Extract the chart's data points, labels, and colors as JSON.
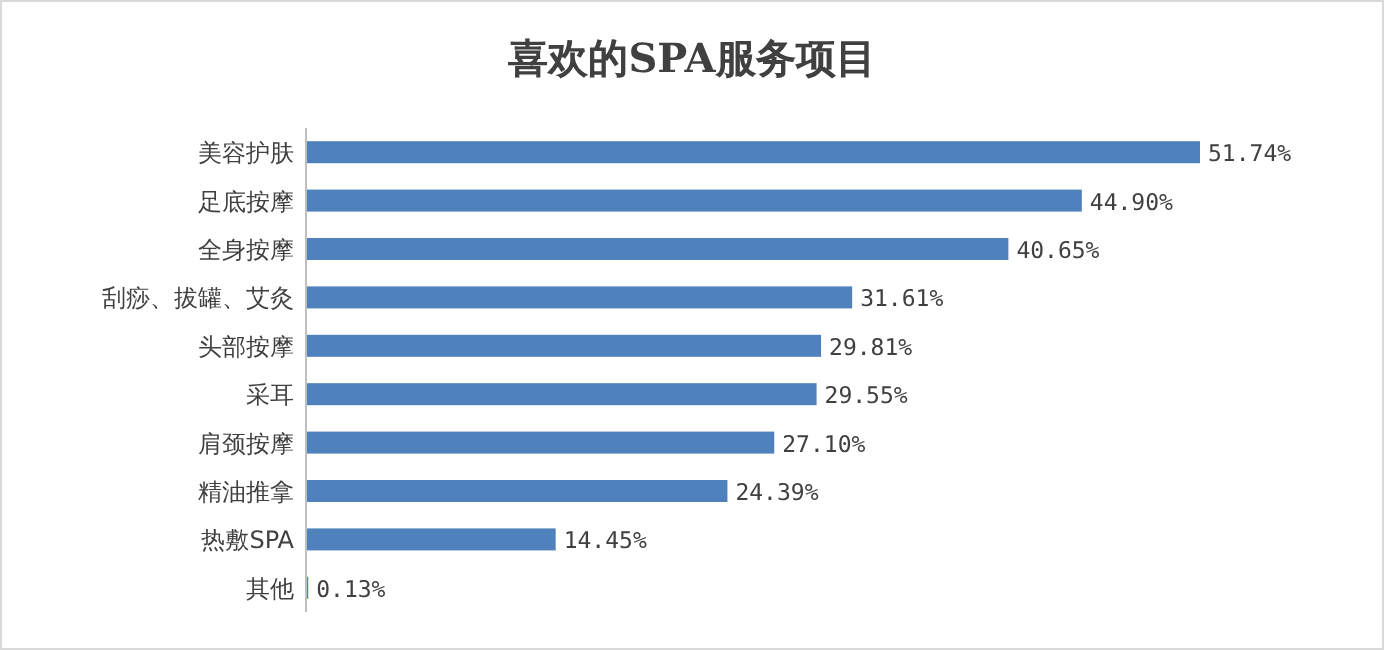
{
  "chart_data": {
    "type": "bar",
    "orientation": "horizontal",
    "title": "喜欢的SPA服务项目",
    "categories": [
      "美容护肤",
      "足底按摩",
      "全身按摩",
      "刮痧、拔罐、艾灸",
      "头部按摩",
      "采耳",
      "肩颈按摩",
      "精油推拿",
      "热敷SPA",
      "其他"
    ],
    "values": [
      51.74,
      44.9,
      40.65,
      31.61,
      29.81,
      29.55,
      27.1,
      24.39,
      14.45,
      0.13
    ],
    "value_labels": [
      "51.74%",
      "44.90%",
      "40.65%",
      "31.61%",
      "29.81%",
      "29.55%",
      "27.10%",
      "24.39%",
      "14.45%",
      "0.13%"
    ],
    "color": "#4f81bd"
  }
}
